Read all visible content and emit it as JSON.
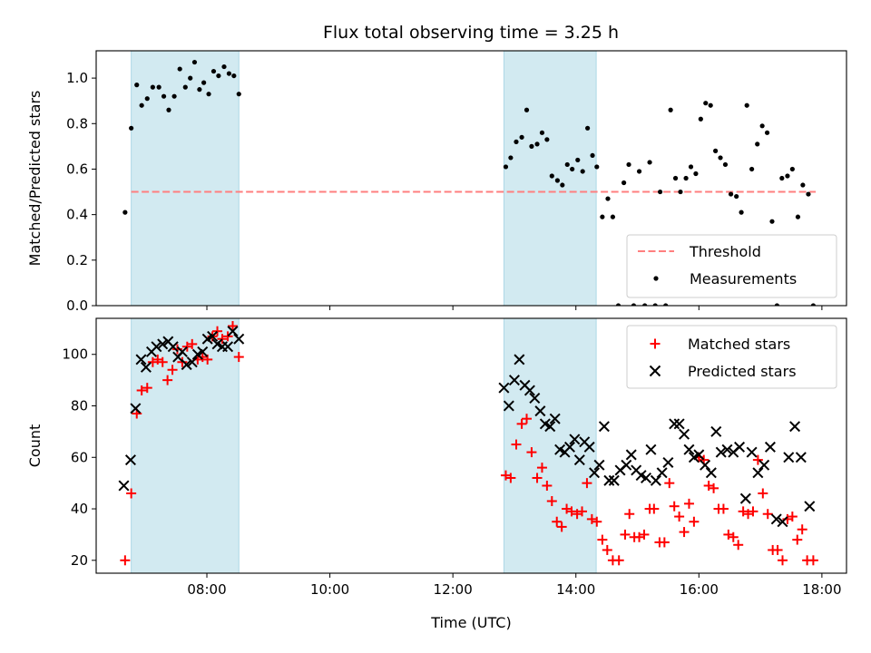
{
  "title": "Flux total observing time = 3.25 h",
  "colors": {
    "threshold": "#ff7f7f",
    "measurement": "#000000",
    "matched": "#ff0000",
    "predicted": "#000000",
    "span_fill": "#add8e6"
  },
  "chart_data": [
    {
      "type": "scatter",
      "panel": "top",
      "ylabel": "Matched/Predicted stars",
      "xlabel": "",
      "x_unit": "hours UTC",
      "xlim": [
        6.2,
        18.4
      ],
      "ylim": [
        0.0,
        1.12
      ],
      "x_ticks": [
        8,
        10,
        12,
        14,
        16,
        18
      ],
      "y_ticks": [
        0.0,
        0.2,
        0.4,
        0.6,
        0.8,
        1.0
      ],
      "y_tick_labels": [
        "0.0",
        "0.2",
        "0.4",
        "0.6",
        "0.8",
        "1.0"
      ],
      "shaded_spans": [
        [
          6.77,
          8.52
        ],
        [
          12.83,
          14.33
        ]
      ],
      "threshold": {
        "name": "Threshold",
        "y": 0.5,
        "x_range": [
          6.77,
          17.9
        ]
      },
      "legend": {
        "placement": "lower-right",
        "entries": [
          "Threshold",
          "Measurements"
        ]
      },
      "series": [
        {
          "name": "Measurements",
          "marker": "dot",
          "points": [
            [
              6.67,
              0.41
            ],
            [
              6.77,
              0.78
            ],
            [
              6.86,
              0.97
            ],
            [
              6.94,
              0.88
            ],
            [
              7.03,
              0.91
            ],
            [
              7.12,
              0.96
            ],
            [
              7.22,
              0.96
            ],
            [
              7.3,
              0.92
            ],
            [
              7.38,
              0.86
            ],
            [
              7.47,
              0.92
            ],
            [
              7.56,
              1.04
            ],
            [
              7.65,
              0.96
            ],
            [
              7.73,
              1.0
            ],
            [
              7.8,
              1.07
            ],
            [
              7.88,
              0.95
            ],
            [
              7.95,
              0.98
            ],
            [
              8.03,
              0.93
            ],
            [
              8.11,
              1.03
            ],
            [
              8.19,
              1.01
            ],
            [
              8.28,
              1.05
            ],
            [
              8.36,
              1.02
            ],
            [
              8.44,
              1.01
            ],
            [
              8.52,
              0.93
            ],
            [
              12.86,
              0.61
            ],
            [
              12.94,
              0.65
            ],
            [
              13.03,
              0.72
            ],
            [
              13.12,
              0.74
            ],
            [
              13.2,
              0.86
            ],
            [
              13.28,
              0.7
            ],
            [
              13.37,
              0.71
            ],
            [
              13.45,
              0.76
            ],
            [
              13.53,
              0.73
            ],
            [
              13.61,
              0.57
            ],
            [
              13.7,
              0.55
            ],
            [
              13.78,
              0.53
            ],
            [
              13.86,
              0.62
            ],
            [
              13.94,
              0.6
            ],
            [
              14.03,
              0.64
            ],
            [
              14.11,
              0.59
            ],
            [
              14.19,
              0.78
            ],
            [
              14.27,
              0.66
            ],
            [
              14.34,
              0.61
            ],
            [
              14.43,
              0.39
            ],
            [
              14.52,
              0.47
            ],
            [
              14.6,
              0.39
            ],
            [
              14.69,
              0.0
            ],
            [
              14.78,
              0.54
            ],
            [
              14.86,
              0.62
            ],
            [
              14.94,
              0.0
            ],
            [
              15.03,
              0.59
            ],
            [
              15.12,
              0.0
            ],
            [
              15.2,
              0.63
            ],
            [
              15.29,
              0.0
            ],
            [
              15.37,
              0.5
            ],
            [
              15.46,
              0.0
            ],
            [
              15.54,
              0.86
            ],
            [
              15.62,
              0.56
            ],
            [
              15.7,
              0.5
            ],
            [
              15.79,
              0.56
            ],
            [
              15.87,
              0.61
            ],
            [
              15.95,
              0.58
            ],
            [
              16.03,
              0.82
            ],
            [
              16.11,
              0.89
            ],
            [
              16.19,
              0.88
            ],
            [
              16.27,
              0.68
            ],
            [
              16.35,
              0.65
            ],
            [
              16.43,
              0.62
            ],
            [
              16.52,
              0.49
            ],
            [
              16.61,
              0.48
            ],
            [
              16.69,
              0.41
            ],
            [
              16.78,
              0.88
            ],
            [
              16.86,
              0.6
            ],
            [
              16.95,
              0.71
            ],
            [
              17.03,
              0.79
            ],
            [
              17.11,
              0.76
            ],
            [
              17.19,
              0.37
            ],
            [
              17.27,
              0.0
            ],
            [
              17.35,
              0.56
            ],
            [
              17.44,
              0.57
            ],
            [
              17.52,
              0.6
            ],
            [
              17.61,
              0.39
            ],
            [
              17.69,
              0.53
            ],
            [
              17.78,
              0.49
            ],
            [
              17.86,
              0.0
            ]
          ]
        }
      ]
    },
    {
      "type": "scatter",
      "panel": "bottom",
      "ylabel": "Count",
      "xlabel": "Time (UTC)",
      "x_unit": "hours UTC",
      "xlim": [
        6.2,
        18.4
      ],
      "ylim": [
        15,
        114
      ],
      "x_ticks": [
        8,
        10,
        12,
        14,
        16,
        18
      ],
      "x_tick_labels": [
        "08:00",
        "10:00",
        "12:00",
        "14:00",
        "16:00",
        "18:00"
      ],
      "y_ticks": [
        20,
        40,
        60,
        80,
        100
      ],
      "y_tick_labels": [
        "20",
        "40",
        "60",
        "80",
        "100"
      ],
      "shaded_spans": [
        [
          6.77,
          8.52
        ],
        [
          12.83,
          14.33
        ]
      ],
      "legend": {
        "placement": "top-right",
        "entries": [
          "Matched stars",
          "Predicted stars"
        ]
      },
      "series": [
        {
          "name": "Matched stars",
          "marker": "plus",
          "points": [
            [
              6.67,
              20
            ],
            [
              6.77,
              46
            ],
            [
              6.86,
              77
            ],
            [
              6.94,
              86
            ],
            [
              7.03,
              87
            ],
            [
              7.12,
              97
            ],
            [
              7.2,
              98
            ],
            [
              7.28,
              97
            ],
            [
              7.36,
              90
            ],
            [
              7.44,
              94
            ],
            [
              7.52,
              102
            ],
            [
              7.6,
              97
            ],
            [
              7.68,
              103
            ],
            [
              7.76,
              104
            ],
            [
              7.85,
              98
            ],
            [
              7.93,
              99
            ],
            [
              8.01,
              98
            ],
            [
              8.09,
              107
            ],
            [
              8.17,
              109
            ],
            [
              8.25,
              106
            ],
            [
              8.34,
              107
            ],
            [
              8.42,
              111
            ],
            [
              8.52,
              99
            ],
            [
              12.86,
              53
            ],
            [
              12.94,
              52
            ],
            [
              13.03,
              65
            ],
            [
              13.12,
              73
            ],
            [
              13.2,
              75
            ],
            [
              13.28,
              62
            ],
            [
              13.37,
              52
            ],
            [
              13.45,
              56
            ],
            [
              13.53,
              49
            ],
            [
              13.61,
              43
            ],
            [
              13.69,
              35
            ],
            [
              13.77,
              33
            ],
            [
              13.85,
              40
            ],
            [
              13.93,
              39
            ],
            [
              14.02,
              38
            ],
            [
              14.1,
              39
            ],
            [
              14.18,
              50
            ],
            [
              14.26,
              36
            ],
            [
              14.34,
              35
            ],
            [
              14.43,
              28
            ],
            [
              14.51,
              24
            ],
            [
              14.6,
              20
            ],
            [
              14.7,
              20
            ],
            [
              14.8,
              30
            ],
            [
              14.87,
              38
            ],
            [
              14.95,
              29
            ],
            [
              15.03,
              29
            ],
            [
              15.11,
              30
            ],
            [
              15.2,
              40
            ],
            [
              15.27,
              40
            ],
            [
              15.36,
              27
            ],
            [
              15.44,
              27
            ],
            [
              15.52,
              50
            ],
            [
              15.6,
              41
            ],
            [
              15.68,
              37
            ],
            [
              15.76,
              31
            ],
            [
              15.84,
              42
            ],
            [
              15.92,
              35
            ],
            [
              16.0,
              60
            ],
            [
              16.08,
              59
            ],
            [
              16.16,
              49
            ],
            [
              16.24,
              48
            ],
            [
              16.32,
              40
            ],
            [
              16.4,
              40
            ],
            [
              16.48,
              30
            ],
            [
              16.56,
              29
            ],
            [
              16.64,
              26
            ],
            [
              16.72,
              39
            ],
            [
              16.8,
              38
            ],
            [
              16.88,
              39
            ],
            [
              16.96,
              59
            ],
            [
              17.04,
              46
            ],
            [
              17.12,
              38
            ],
            [
              17.2,
              24
            ],
            [
              17.28,
              24
            ],
            [
              17.36,
              20
            ],
            [
              17.44,
              36
            ],
            [
              17.52,
              37
            ],
            [
              17.6,
              28
            ],
            [
              17.68,
              32
            ],
            [
              17.76,
              20
            ],
            [
              17.86,
              20
            ]
          ]
        },
        {
          "name": "Predicted stars",
          "marker": "x",
          "points": [
            [
              6.65,
              49
            ],
            [
              6.76,
              59
            ],
            [
              6.84,
              79
            ],
            [
              6.93,
              98
            ],
            [
              7.01,
              95
            ],
            [
              7.1,
              101
            ],
            [
              7.18,
              103
            ],
            [
              7.28,
              104
            ],
            [
              7.37,
              105
            ],
            [
              7.45,
              103
            ],
            [
              7.53,
              99
            ],
            [
              7.6,
              101
            ],
            [
              7.67,
              96
            ],
            [
              7.76,
              97
            ],
            [
              7.85,
              100
            ],
            [
              7.93,
              101
            ],
            [
              8.01,
              106
            ],
            [
              8.09,
              107
            ],
            [
              8.17,
              104
            ],
            [
              8.25,
              103
            ],
            [
              8.34,
              103
            ],
            [
              8.42,
              109
            ],
            [
              8.52,
              106
            ],
            [
              12.83,
              87
            ],
            [
              12.91,
              80
            ],
            [
              13.0,
              90
            ],
            [
              13.08,
              98
            ],
            [
              13.17,
              88
            ],
            [
              13.25,
              86
            ],
            [
              13.33,
              83
            ],
            [
              13.42,
              78
            ],
            [
              13.5,
              73
            ],
            [
              13.58,
              72
            ],
            [
              13.66,
              75
            ],
            [
              13.74,
              63
            ],
            [
              13.82,
              62
            ],
            [
              13.9,
              64
            ],
            [
              13.98,
              67
            ],
            [
              14.06,
              59
            ],
            [
              14.14,
              66
            ],
            [
              14.22,
              64
            ],
            [
              14.3,
              54
            ],
            [
              14.38,
              57
            ],
            [
              14.46,
              72
            ],
            [
              14.54,
              51
            ],
            [
              14.62,
              51
            ],
            [
              14.72,
              55
            ],
            [
              14.82,
              57
            ],
            [
              14.9,
              61
            ],
            [
              14.98,
              55
            ],
            [
              15.06,
              53
            ],
            [
              15.14,
              52
            ],
            [
              15.22,
              63
            ],
            [
              15.3,
              51
            ],
            [
              15.4,
              54
            ],
            [
              15.5,
              58
            ],
            [
              15.6,
              73
            ],
            [
              15.68,
              73
            ],
            [
              15.76,
              69
            ],
            [
              15.84,
              63
            ],
            [
              15.92,
              60
            ],
            [
              16.0,
              61
            ],
            [
              16.1,
              57
            ],
            [
              16.2,
              54
            ],
            [
              16.28,
              70
            ],
            [
              16.36,
              62
            ],
            [
              16.46,
              63
            ],
            [
              16.56,
              62
            ],
            [
              16.66,
              64
            ],
            [
              16.76,
              44
            ],
            [
              16.86,
              62
            ],
            [
              16.96,
              54
            ],
            [
              17.06,
              57
            ],
            [
              17.16,
              64
            ],
            [
              17.26,
              36
            ],
            [
              17.36,
              35
            ],
            [
              17.46,
              60
            ],
            [
              17.56,
              72
            ],
            [
              17.66,
              60
            ],
            [
              17.8,
              41
            ]
          ]
        }
      ]
    }
  ]
}
